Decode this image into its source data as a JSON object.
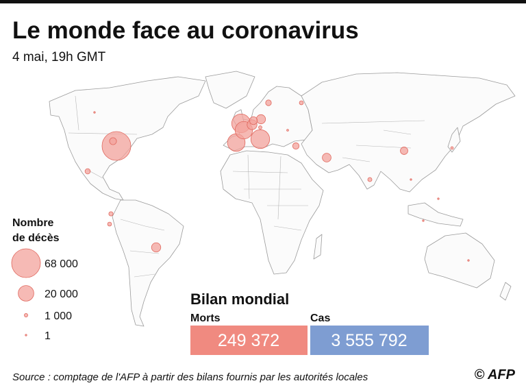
{
  "title": "Le monde face au coronavirus",
  "subtitle": "4 mai, 19h GMT",
  "legend": {
    "title": [
      "Nombre",
      "de décès"
    ],
    "values": [
      {
        "value": 68000,
        "label": "68 000"
      },
      {
        "value": 20000,
        "label": "20 000"
      },
      {
        "value": 1000,
        "label": "1 000"
      },
      1
    ]
  },
  "deaths_by_location": [
    68000,
    28700,
    29000,
    25400,
    25000,
    8000,
    6900,
    6300,
    7000,
    4000,
    2300,
    3400,
    4600,
    5100,
    1300,
    2700,
    1300,
    1500,
    1400,
    900,
    600,
    300,
    200,
    150,
    100,
    80,
    60
  ],
  "summary": {
    "title": "Bilan mondial",
    "deaths": {
      "label": "Morts",
      "value": "249 372"
    },
    "cases": {
      "label": "Cas",
      "value": "3 555 792"
    }
  },
  "source": "Source : comptage de l'AFP à partir des bilans fournis par les autorités locales",
  "credit": "© AFP"
}
